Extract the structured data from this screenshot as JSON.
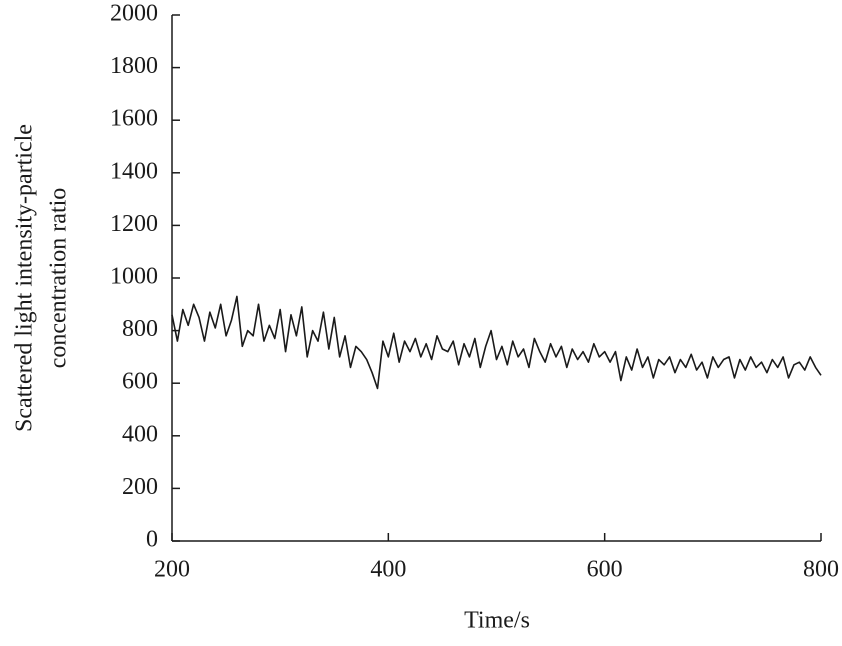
{
  "chart_data": {
    "type": "line",
    "xlabel": "Time/s",
    "ylabel": [
      "Scattered light intensity-particle",
      "concentration ratio"
    ],
    "x": [
      200,
      205,
      210,
      215,
      220,
      225,
      230,
      235,
      240,
      245,
      250,
      255,
      260,
      265,
      270,
      275,
      280,
      285,
      290,
      295,
      300,
      305,
      310,
      315,
      320,
      325,
      330,
      335,
      340,
      345,
      350,
      355,
      360,
      365,
      370,
      375,
      380,
      385,
      390,
      395,
      400,
      405,
      410,
      415,
      420,
      425,
      430,
      435,
      440,
      445,
      450,
      455,
      460,
      465,
      470,
      475,
      480,
      485,
      490,
      495,
      500,
      505,
      510,
      515,
      520,
      525,
      530,
      535,
      540,
      545,
      550,
      555,
      560,
      565,
      570,
      575,
      580,
      585,
      590,
      595,
      600,
      605,
      610,
      615,
      620,
      625,
      630,
      635,
      640,
      645,
      650,
      655,
      660,
      665,
      670,
      675,
      680,
      685,
      690,
      695,
      700,
      705,
      710,
      715,
      720,
      725,
      730,
      735,
      740,
      745,
      750,
      755,
      760,
      765,
      770,
      775,
      780,
      785,
      790,
      795,
      800
    ],
    "series": [
      {
        "color": "#1a1a1a",
        "values": [
          860,
          760,
          880,
          820,
          900,
          850,
          760,
          870,
          810,
          900,
          780,
          840,
          930,
          740,
          800,
          780,
          900,
          760,
          820,
          770,
          880,
          720,
          860,
          780,
          890,
          700,
          800,
          760,
          870,
          730,
          850,
          700,
          780,
          660,
          740,
          720,
          690,
          640,
          580,
          760,
          700,
          790,
          680,
          760,
          720,
          770,
          700,
          750,
          690,
          780,
          730,
          720,
          760,
          670,
          750,
          700,
          770,
          660,
          740,
          800,
          690,
          740,
          670,
          760,
          700,
          730,
          660,
          770,
          720,
          680,
          750,
          700,
          740,
          660,
          730,
          690,
          720,
          680,
          750,
          700,
          720,
          680,
          720,
          610,
          700,
          650,
          730,
          660,
          700,
          620,
          690,
          670,
          700,
          640,
          690,
          660,
          710,
          650,
          680,
          620,
          700,
          660,
          690,
          700,
          620,
          690,
          650,
          700,
          660,
          680,
          640,
          690,
          660,
          700,
          620,
          670,
          680,
          650,
          700,
          660,
          630
        ]
      }
    ],
    "xlim": [
      200,
      800
    ],
    "xticks": [
      200,
      400,
      600,
      800
    ],
    "ylim": [
      0,
      2000
    ],
    "yticks": [
      0,
      200,
      400,
      600,
      800,
      1000,
      1200,
      1400,
      1600,
      1800,
      2000
    ]
  }
}
